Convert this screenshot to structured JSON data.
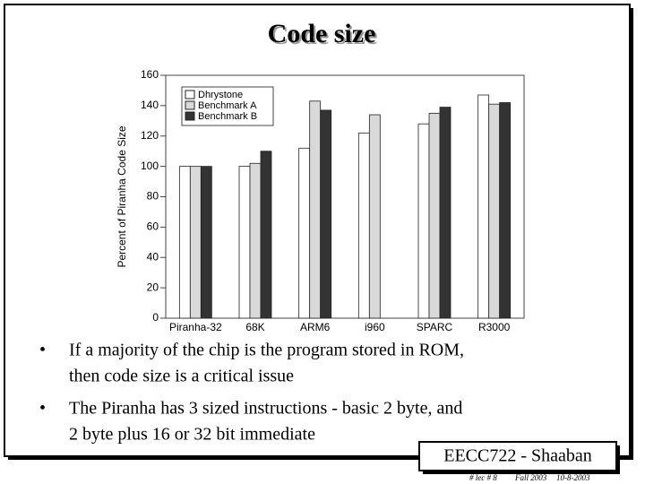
{
  "title": "Code size",
  "chart_data": {
    "type": "bar",
    "y_label": "Percent of Piranha Code Size",
    "categories": [
      "Piranha-32",
      "68K",
      "ARM6",
      "i960",
      "SPARC",
      "R3000"
    ],
    "series": [
      {
        "name": "Dhrystone",
        "color": "#ffffff",
        "values": [
          100,
          100,
          112,
          122,
          128,
          147
        ]
      },
      {
        "name": "Benchmark A",
        "color": "#d9d9d9",
        "values": [
          100,
          102,
          143,
          134,
          135,
          141
        ]
      },
      {
        "name": "Benchmark B",
        "color": "#333333",
        "values": [
          100,
          110,
          137,
          null,
          139,
          142
        ]
      }
    ],
    "ylim": [
      0,
      160
    ],
    "yticks": [
      0,
      20,
      40,
      60,
      80,
      100,
      120,
      140,
      160
    ],
    "legend": "top-left"
  },
  "bullets": [
    [
      "If a majority of the chip is the program stored in ROM,",
      "then code size is a critical issue"
    ],
    [
      "The Piranha has 3 sized instructions - basic 2 byte, and",
      "2 byte plus 16 or 32 bit immediate"
    ]
  ],
  "footer": {
    "badge": "EECC722 - Shaaban",
    "lecture": "#  lec # 8",
    "term": "Fall 2003",
    "date": "10-8-2003"
  }
}
